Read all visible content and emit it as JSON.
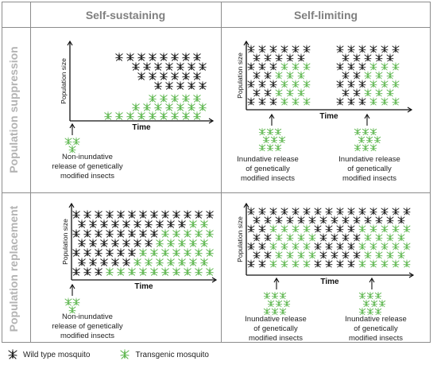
{
  "columns": {
    "left": "Self-sustaining",
    "right": "Self-limiting"
  },
  "rows": {
    "top": "Population suppression",
    "bottom": "Population replacement"
  },
  "axes": {
    "y": "Population size",
    "x": "Time"
  },
  "captions": {
    "tl": [
      "Non-inundative",
      "release of genetically",
      "modified insects"
    ],
    "tr1": [
      "Inundative release",
      "of genetically",
      "modified insects"
    ],
    "tr2": [
      "Inundative release",
      "of genetically",
      "modified insects"
    ],
    "bl": [
      "Non-inundative",
      "release of genetically",
      "modified insects"
    ],
    "br1": [
      "Inundative release",
      "of genetically",
      "modified insects"
    ],
    "br2": [
      "Inundative release",
      "of genetically",
      "modified insects"
    ]
  },
  "legend": {
    "wild": "Wild type mosquito",
    "transgenic": "Transgenic mosquito"
  },
  "colors": {
    "wild": "#1a1a1a",
    "transgenic": "#5ab54b",
    "header": "#7f7f7f",
    "row_header": "#b3b3b3",
    "grid": "#8c8c8c"
  },
  "icons": {
    "wild": "mosquito-icon",
    "transgenic": "mosquito-icon",
    "release": "up-arrow-icon"
  }
}
